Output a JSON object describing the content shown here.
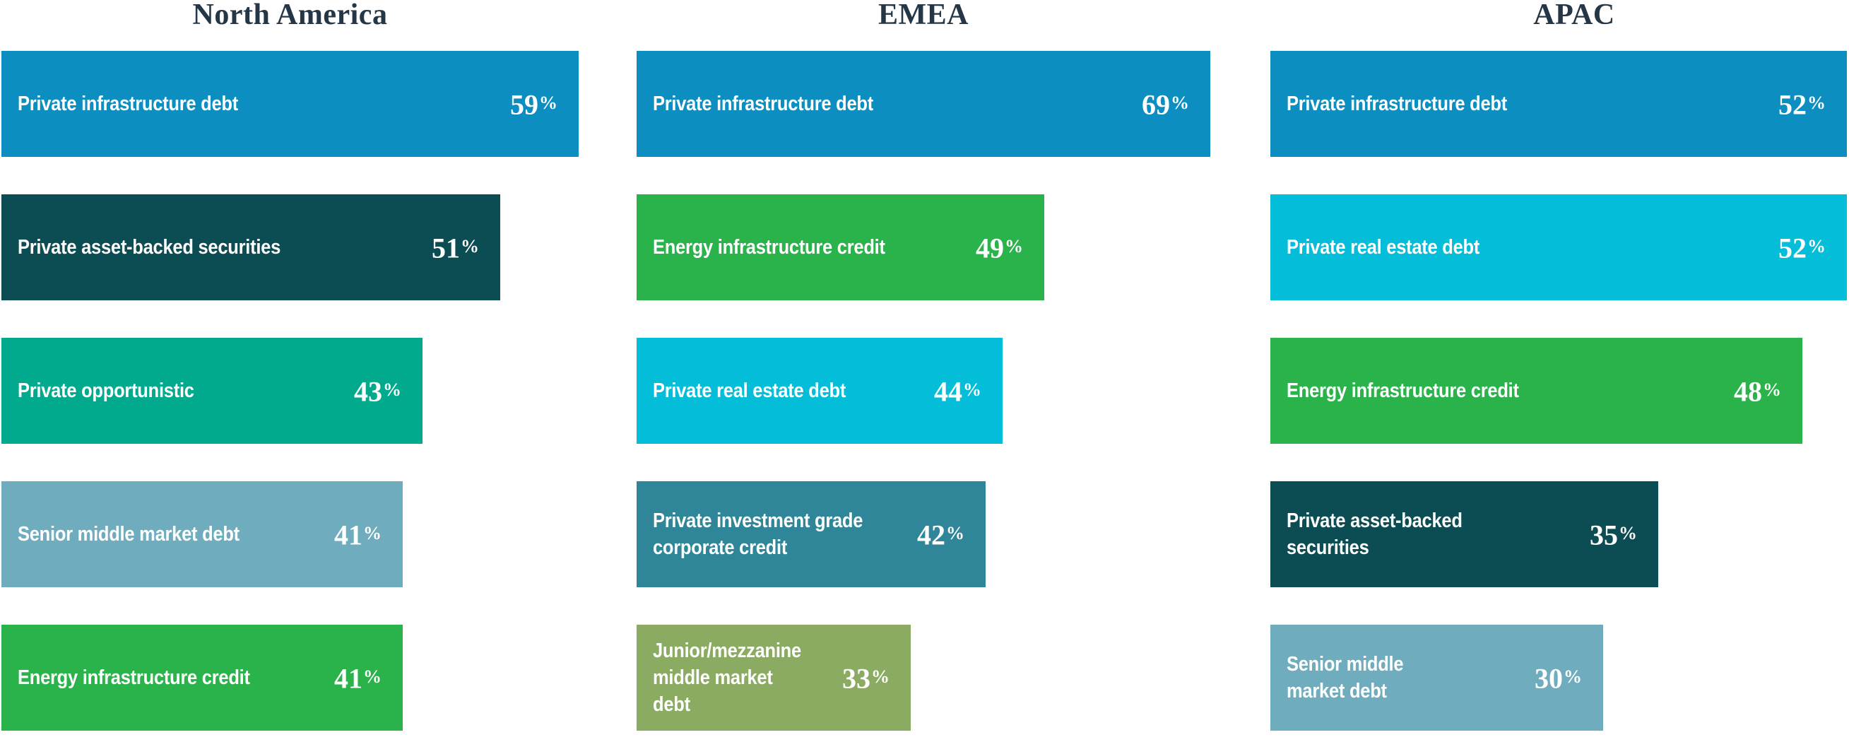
{
  "chart_data": [
    {
      "type": "bar",
      "orientation": "horizontal",
      "title": "North America",
      "value_suffix": "%",
      "categories": [
        "Private infrastructure debt",
        "Private asset-backed securities",
        "Private opportunistic",
        "Senior middle market debt",
        "Energy infrastructure credit"
      ],
      "values": [
        59,
        51,
        43,
        41,
        41
      ],
      "colors": [
        "#0d8ec1",
        "#0b4d53",
        "#02aa8d",
        "#6fadbe",
        "#2bb34b"
      ]
    },
    {
      "type": "bar",
      "orientation": "horizontal",
      "title": "EMEA",
      "value_suffix": "%",
      "categories": [
        "Private infrastructure debt",
        "Energy infrastructure credit",
        "Private real estate debt",
        "Private investment grade\ncorporate credit",
        "Junior/mezzanine\nmiddle market\ndebt"
      ],
      "values": [
        69,
        49,
        44,
        42,
        33
      ],
      "colors": [
        "#0d8ec1",
        "#2bb34b",
        "#03bdd9",
        "#2f8698",
        "#8bab62"
      ]
    },
    {
      "type": "bar",
      "orientation": "horizontal",
      "title": "APAC",
      "value_suffix": "%",
      "categories": [
        "Private infrastructure debt",
        "Private real estate debt",
        "Energy infrastructure credit",
        "Private asset-backed\nsecurities",
        "Senior middle\nmarket debt"
      ],
      "values": [
        52,
        52,
        48,
        35,
        30
      ],
      "colors": [
        "#0d8ec1",
        "#03bdd9",
        "#2bb34b",
        "#0b4d53",
        "#6fadbe"
      ]
    }
  ],
  "styles": {
    "title_color": "#253746",
    "bar_text_color": "#ffffff",
    "background": "#ffffff"
  }
}
